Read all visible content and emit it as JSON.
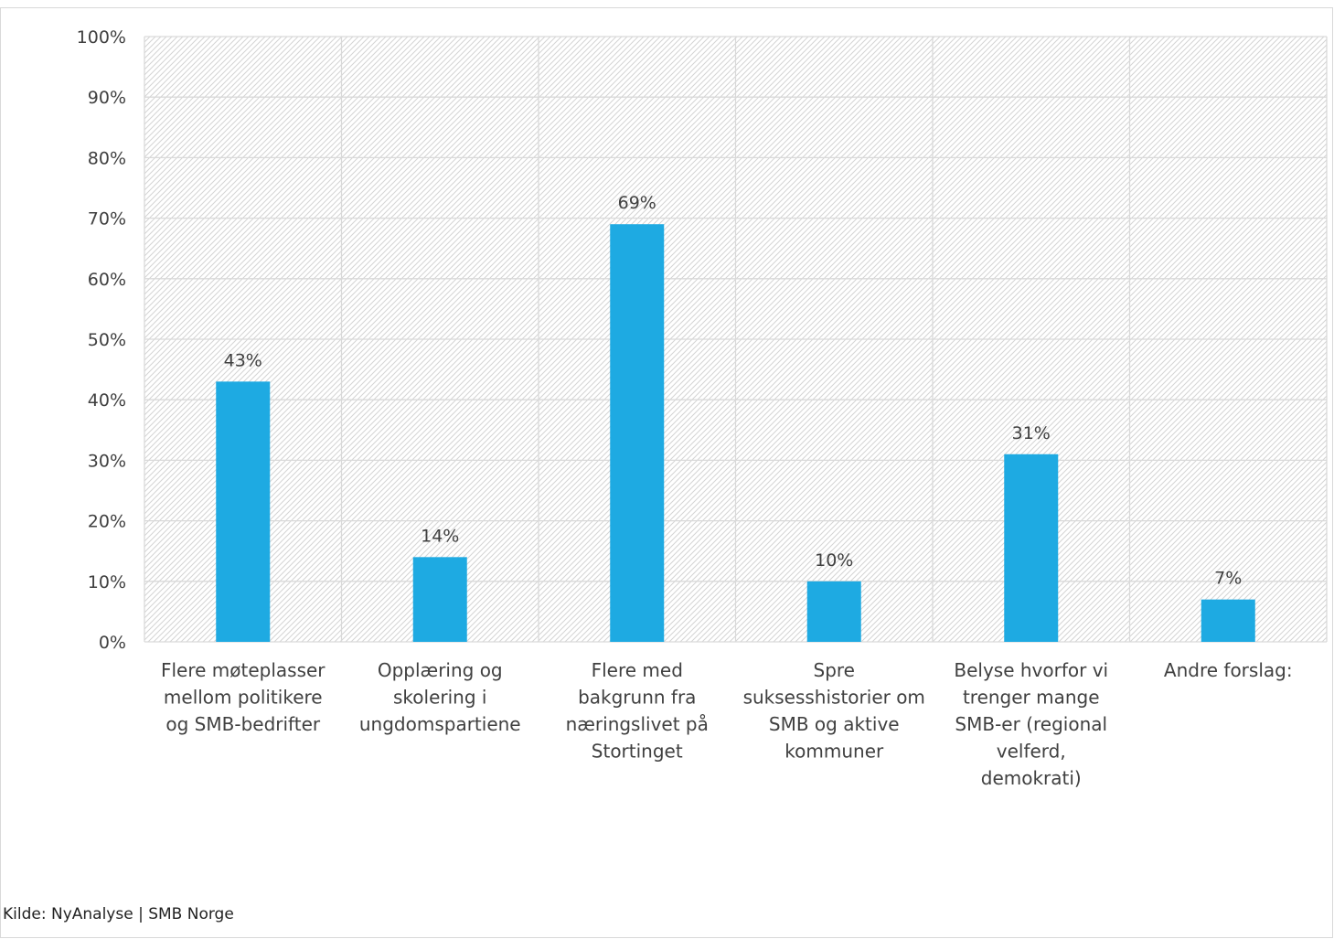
{
  "chart_data": {
    "type": "bar",
    "categories": [
      "Flere møteplasser mellom politikere og SMB-bedrifter",
      "Opplæring og skolering i ungdomspartiene",
      "Flere med bakgrunn fra næringslivet på Stortinget",
      "Spre suksesshistorier om SMB og aktive kommuner",
      "Belyse hvorfor vi trenger mange SMB-er (regional velferd, demokrati)",
      "Andre forslag:"
    ],
    "category_lines": [
      [
        "Flere møteplasser",
        "mellom politikere",
        "og SMB-bedrifter"
      ],
      [
        "Opplæring og",
        "skolering i",
        "ungdomspartiene"
      ],
      [
        "Flere med",
        "bakgrunn fra",
        "næringslivet på",
        "Stortinget"
      ],
      [
        "Spre",
        "suksesshistorier om",
        "SMB og aktive",
        "kommuner"
      ],
      [
        "Belyse hvorfor vi",
        "trenger mange",
        "SMB-er (regional",
        "velferd,",
        "demokrati)"
      ],
      [
        "Andre forslag:"
      ]
    ],
    "values": [
      43,
      14,
      69,
      10,
      31,
      7
    ],
    "data_labels": [
      "43%",
      "14%",
      "69%",
      "10%",
      "31%",
      "7%"
    ],
    "ylim": [
      0,
      100
    ],
    "yticks": [
      0,
      10,
      20,
      30,
      40,
      50,
      60,
      70,
      80,
      90,
      100
    ],
    "ytick_labels": [
      "0%",
      "10%",
      "20%",
      "30%",
      "40%",
      "50%",
      "60%",
      "70%",
      "80%",
      "90%",
      "100%"
    ],
    "title": "",
    "xlabel": "",
    "ylabel": "",
    "grid": true,
    "bar_color": "#1eaae2",
    "grid_color": "#d9d9d9"
  },
  "source_note": "Kilde: NyAnalyse | SMB Norge"
}
